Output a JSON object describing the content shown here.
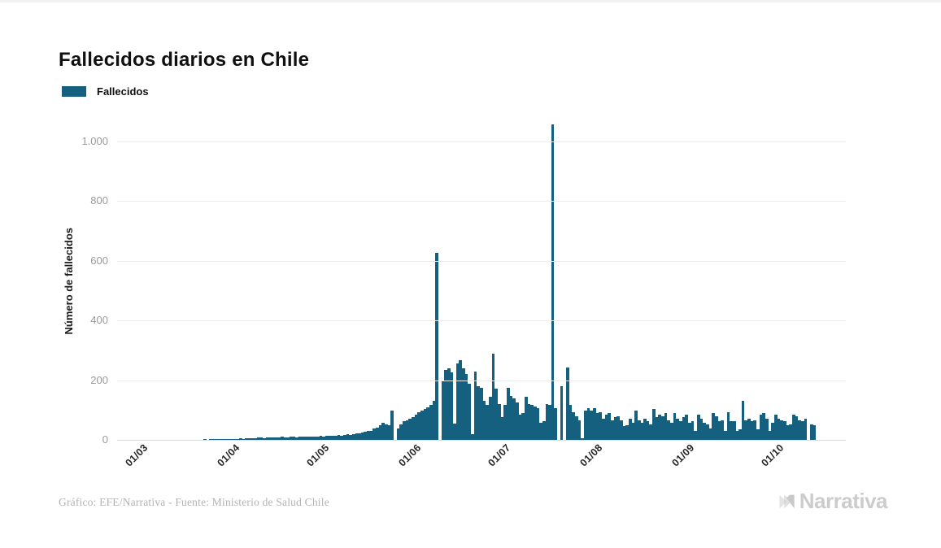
{
  "title": "Fallecidos diarios en Chile",
  "legend": {
    "label": "Fallecidos",
    "color": "#15607f"
  },
  "y_axis": {
    "title": "Número de fallecidos"
  },
  "x_axis": {
    "ticks": [
      "01/03",
      "01/04",
      "01/05",
      "01/06",
      "01/07",
      "01/08",
      "01/09",
      "01/10"
    ]
  },
  "footer": {
    "credit": "Gráfico: EFE/Narrativa - Fuente: Ministerio de Salud Chile",
    "brand": "Narrativa"
  },
  "chart_data": {
    "type": "bar",
    "title": "Fallecidos diarios en Chile",
    "series_name": "Fallecidos",
    "bar_color": "#15607f",
    "ylabel": "Número de fallecidos",
    "ylim": [
      0,
      1100
    ],
    "y_ticks": [
      0,
      200,
      400,
      600,
      800,
      1000
    ],
    "y_tick_labels": [
      "0",
      "200",
      "400",
      "600",
      "800",
      "1.000"
    ],
    "x_tick_labels": [
      "01/03",
      "01/04",
      "01/05",
      "01/06",
      "01/07",
      "01/08",
      "01/09",
      "01/10"
    ],
    "x_tick_positions": [
      6,
      37,
      67,
      98,
      128,
      159,
      190,
      220
    ],
    "grid": "horizontal",
    "legend_position": "top-left",
    "notable_values": {
      "peak": 1057,
      "secondary_peak": 627
    },
    "values": [
      0,
      0,
      0,
      0,
      0,
      0,
      0,
      0,
      0,
      0,
      0,
      0,
      0,
      0,
      0,
      0,
      0,
      0,
      0,
      0,
      0,
      0,
      0,
      0,
      0,
      0,
      1,
      1,
      1,
      2,
      1,
      2,
      2,
      2,
      3,
      2,
      3,
      3,
      3,
      4,
      4,
      5,
      4,
      5,
      6,
      5,
      6,
      8,
      7,
      6,
      8,
      9,
      8,
      7,
      9,
      10,
      9,
      8,
      10,
      11,
      9,
      10,
      11,
      12,
      10,
      11,
      12,
      12,
      13,
      12,
      14,
      13,
      15,
      14,
      16,
      15,
      17,
      18,
      17,
      19,
      21,
      23,
      25,
      27,
      29,
      31,
      38,
      42,
      49,
      57,
      52,
      49,
      98,
      0,
      38,
      52,
      63,
      65,
      71,
      76,
      85,
      93,
      98,
      104,
      110,
      118,
      131,
      627,
      0,
      199,
      234,
      240,
      226,
      55,
      256,
      267,
      240,
      221,
      188,
      20,
      229,
      180,
      175,
      130,
      117,
      144,
      289,
      172,
      120,
      76,
      117,
      175,
      147,
      139,
      125,
      85,
      90,
      144,
      120,
      117,
      112,
      106,
      57,
      63,
      120,
      117,
      1057,
      106,
      0,
      180,
      0,
      243,
      117,
      93,
      79,
      65,
      5,
      98,
      106,
      98,
      106,
      90,
      93,
      71,
      85,
      90,
      65,
      76,
      79,
      65,
      45,
      49,
      71,
      57,
      98,
      65,
      57,
      71,
      63,
      52,
      104,
      76,
      85,
      79,
      90,
      65,
      57,
      90,
      71,
      63,
      76,
      85,
      57,
      63,
      30,
      85,
      71,
      57,
      52,
      38,
      90,
      79,
      63,
      65,
      30,
      93,
      63,
      63,
      30,
      35,
      131,
      65,
      71,
      63,
      65,
      35,
      85,
      90,
      71,
      30,
      57,
      85,
      71,
      65,
      63,
      49,
      52,
      85,
      79,
      65,
      63,
      71,
      0,
      52,
      49
    ]
  }
}
